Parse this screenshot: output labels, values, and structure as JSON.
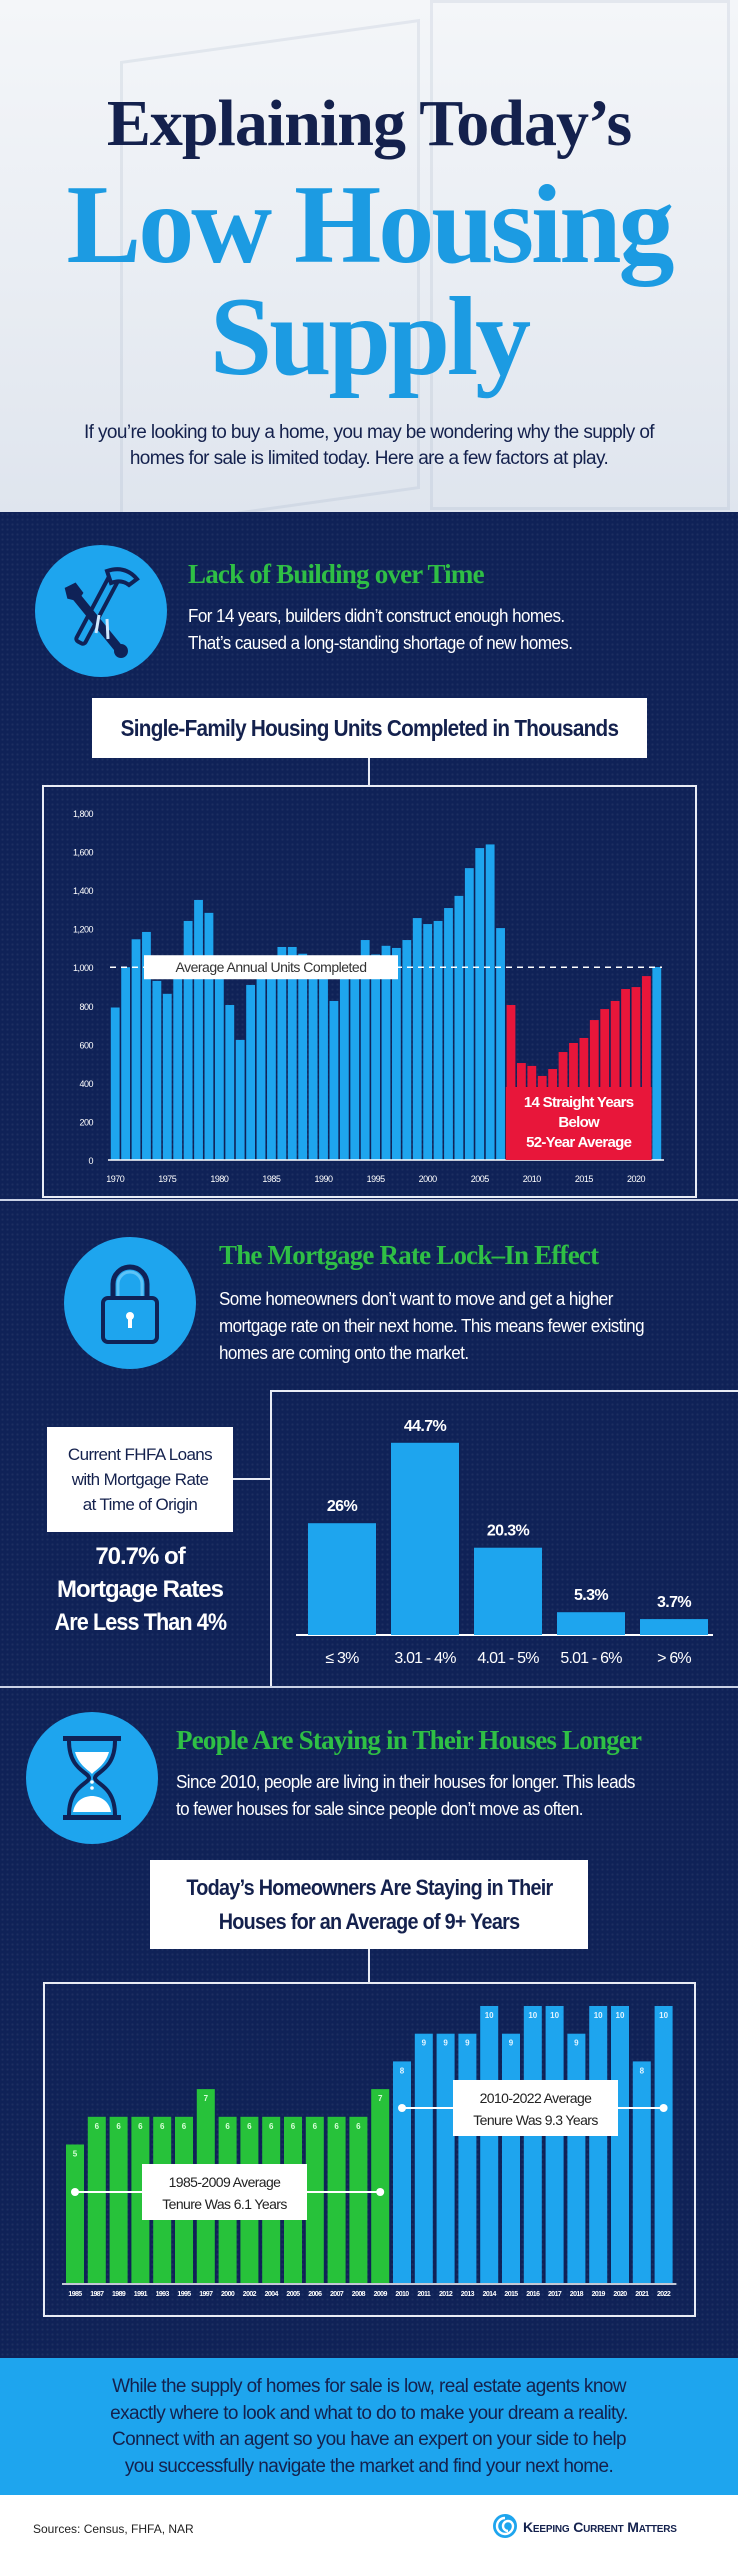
{
  "header": {
    "title_line1": "Explaining Today’s",
    "title_line2": "Low Housing",
    "title_line3": "Supply",
    "intro_line1": "If you’re looking to buy a home, you may be wondering why the supply of",
    "intro_line2": "homes for sale is limited today. Here are a few factors at play."
  },
  "sections": [
    {
      "icon": "hammer-wrench-icon",
      "title": "Lack of Building over Time",
      "text_line1": "For 14 years, builders didn’t construct enough homes.",
      "text_line2": "That’s caused a long-standing shortage of new homes.",
      "chart_title": "Single-Family Housing Units Completed in Thousands"
    },
    {
      "icon": "padlock-icon",
      "title": "The Mortgage Rate Lock–In Effect",
      "text_line1": "Some homeowners don’t want to move and get a higher",
      "text_line2": "mortgage rate on their next home. This means fewer existing",
      "text_line3": "homes are coming onto the market.",
      "chart_label_line1": "Current FHFA Loans",
      "chart_label_line2": "with Mortgage Rate",
      "chart_label_line3": "at Time of Origin",
      "callout_line1": "70.7% of",
      "callout_line2": "Mortgage Rates",
      "callout_line3": "Are Less Than 4%"
    },
    {
      "icon": "hourglass-icon",
      "title": "People Are Staying in Their Houses Longer",
      "text_line1": "Since 2010, people are living in their houses for longer. This leads",
      "text_line2": "to fewer houses for sale since people don’t move as often.",
      "chart_title_line1": "Today’s Homeowners Are Staying in Their",
      "chart_title_line2": "Houses for an Average of 9+ Years"
    }
  ],
  "cta": {
    "line1": "While the supply of homes for sale is low, real estate agents know",
    "line2": "exactly where to look and what to do to make your dream a reality.",
    "line3": "Connect with an agent so you have an expert on your side to help",
    "line4": "you successfully navigate the market and find your next home."
  },
  "footer": {
    "sources": "Sources: Census, FHFA, NAR",
    "logo_text": "Keeping Current Matters",
    "logo_icon": "swirl-logo-icon"
  },
  "colors": {
    "navy": "#0f2257",
    "blue": "#1ea5ee",
    "green": "#2fbf45",
    "red": "#e8163a",
    "title_dark": "#14214d"
  },
  "chart_data": [
    {
      "type": "bar",
      "title": "Single-Family Housing Units Completed in Thousands",
      "x": [
        1970,
        1971,
        1972,
        1973,
        1974,
        1975,
        1976,
        1977,
        1978,
        1979,
        1980,
        1981,
        1982,
        1983,
        1984,
        1985,
        1986,
        1987,
        1988,
        1989,
        1990,
        1991,
        1992,
        1993,
        1994,
        1995,
        1996,
        1997,
        1998,
        1999,
        2000,
        2001,
        2002,
        2003,
        2004,
        2005,
        2006,
        2007,
        2008,
        2009,
        2010,
        2011,
        2012,
        2013,
        2014,
        2015,
        2016,
        2017,
        2018,
        2019,
        2020,
        2021,
        2022
      ],
      "values": [
        791,
        1000,
        1145,
        1183,
        929,
        862,
        1030,
        1240,
        1349,
        1282,
        957,
        804,
        623,
        908,
        1000,
        1050,
        1105,
        1105,
        1070,
        1010,
        950,
        825,
        960,
        1040,
        1141,
        1066,
        1111,
        1100,
        1141,
        1255,
        1224,
        1240,
        1307,
        1370,
        1514,
        1618,
        1637,
        1203,
        804,
        503,
        488,
        436,
        472,
        560,
        607,
        633,
        726,
        783,
        825,
        887,
        897,
        954,
        1001
      ],
      "highlight_years": [
        2008,
        2021
      ],
      "ylim": [
        0,
        1800
      ],
      "yticks": [
        "0",
        "200",
        "400",
        "600",
        "800",
        "1,000",
        "1,200",
        "1,400",
        "1,600",
        "1,800"
      ],
      "xticks": [
        "1970",
        "1975",
        "1980",
        "1985",
        "1990",
        "1995",
        "2000",
        "2005",
        "2010",
        "2015",
        "2020"
      ],
      "average": 1000,
      "average_label": "Average Annual Units Completed",
      "annotation_line1": "14 Straight Years",
      "annotation_line2": "Below",
      "annotation_line3": "52-Year Average",
      "grid": false
    },
    {
      "type": "bar",
      "categories": [
        "≤ 3%",
        "3.01 - 4%",
        "4.01 - 5%",
        "5.01 - 6%",
        "> 6%"
      ],
      "values": [
        26,
        44.7,
        20.3,
        5.3,
        3.7
      ],
      "labels": [
        "26%",
        "44.7%",
        "20.3%",
        "5.3%",
        "3.7%"
      ],
      "grid": false
    },
    {
      "type": "bar",
      "title": "Today’s Homeowners Are Staying in Their Houses for an Average of 9+ Years",
      "categories": [
        "1985",
        "1987",
        "1989",
        "1991",
        "1993",
        "1995",
        "1997",
        "2000",
        "2002",
        "2004",
        "2005",
        "2006",
        "2007",
        "2008",
        "2009",
        "2010",
        "2011",
        "2012",
        "2013",
        "2014",
        "2015",
        "2016",
        "2017",
        "2018",
        "2019",
        "2020",
        "2021",
        "2022"
      ],
      "values": [
        5,
        6,
        6,
        6,
        6,
        6,
        7,
        6,
        6,
        6,
        6,
        6,
        6,
        6,
        7,
        8,
        9,
        9,
        9,
        10,
        9,
        10,
        10,
        9,
        10,
        10,
        8,
        10
      ],
      "period_1_label_line1": "1985-2009 Average",
      "period_1_label_line2": "Tenure Was 6.1 Years",
      "period_1_average": 6.1,
      "period_2_label_line1": "2010-2022 Average",
      "period_2_label_line2": "Tenure Was 9.3 Years",
      "period_2_average": 9.3,
      "grid": false
    }
  ]
}
